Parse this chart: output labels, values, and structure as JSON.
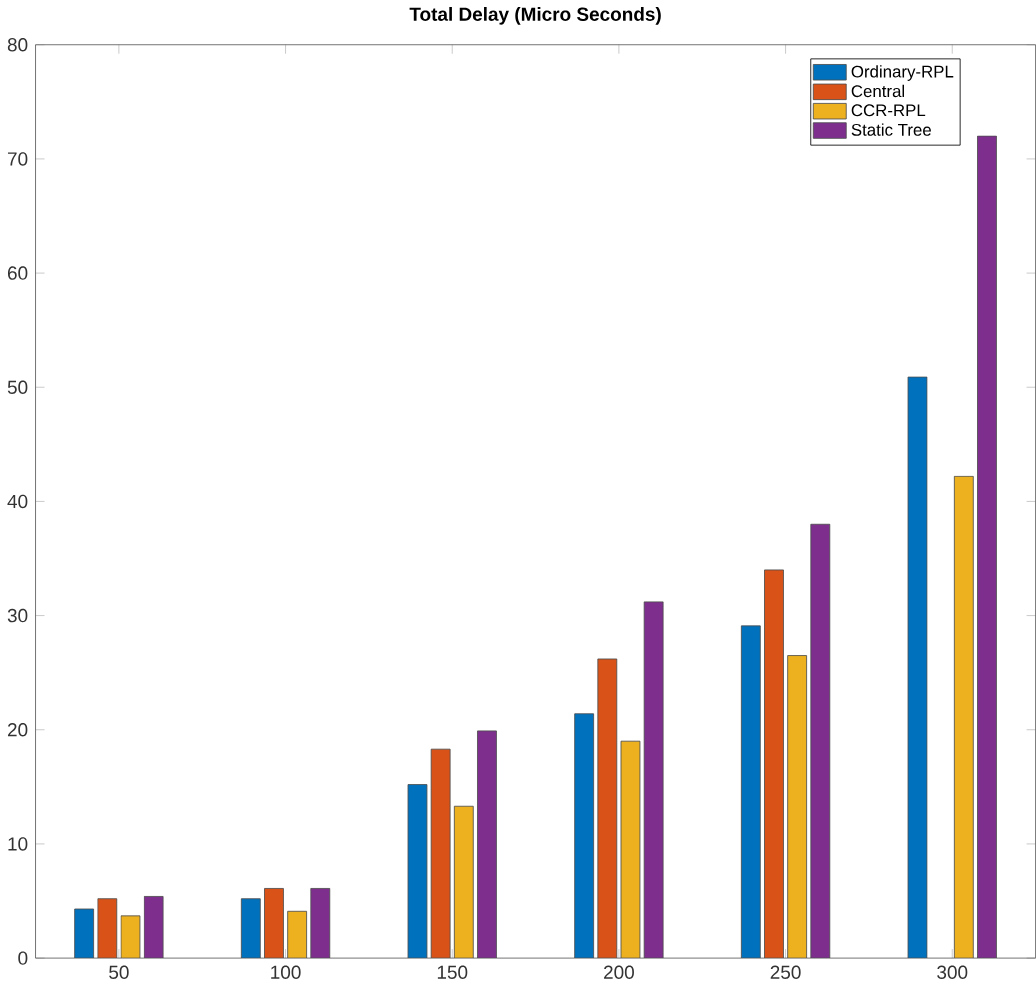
{
  "chart_data": {
    "type": "bar",
    "title": "**Total Delay (Micro Seconds)**",
    "categories": [
      "50",
      "100",
      "150",
      "200",
      "250",
      "300"
    ],
    "series": [
      {
        "name": "Ordinary-RPL",
        "color": "#0072bd",
        "values": [
          4.3,
          5.2,
          15.2,
          21.4,
          29.1,
          50.9
        ]
      },
      {
        "name": "Central",
        "color": "#d95319",
        "values": [
          5.2,
          6.1,
          18.3,
          26.2,
          34,
          null
        ]
      },
      {
        "name": "CCR-RPL",
        "color": "#edb120",
        "values": [
          3.7,
          4.1,
          13.3,
          19.0,
          26.5,
          42.2
        ]
      },
      {
        "name": "Static Tree",
        "color": "#7e2f8e",
        "values": [
          5.4,
          6.1,
          19.9,
          31.2,
          38,
          72
        ]
      }
    ],
    "ylim": [
      0,
      80
    ],
    "yticks": [
      0,
      10,
      20,
      30,
      40,
      50,
      60,
      70,
      80
    ],
    "grid": false,
    "legend": "top right"
  }
}
